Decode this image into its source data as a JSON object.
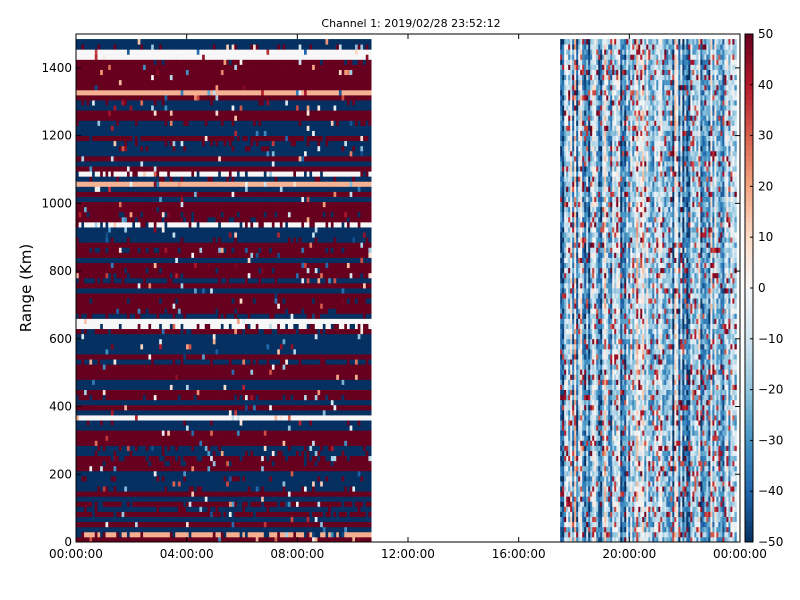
{
  "chart_data": {
    "type": "heatmap",
    "title": "Channel 1: 2019/02/28 23:52:12",
    "xlabel": "",
    "ylabel": "Range (Km)",
    "x_range": [
      "00:00:00",
      "24:00:00"
    ],
    "x_ticks": [
      "00:00:00",
      "04:00:00",
      "08:00:00",
      "12:00:00",
      "16:00:00",
      "20:00:00",
      "00:00:00"
    ],
    "y_range": [
      0,
      1500
    ],
    "y_ticks": [
      "0",
      "200",
      "400",
      "600",
      "800",
      "1000",
      "1200",
      "1400"
    ],
    "colorbar": {
      "range": [
        -50,
        50
      ],
      "ticks": [
        "50",
        "40",
        "30",
        "20",
        "10",
        "0",
        "−10",
        "−20",
        "−30",
        "−40",
        "−50"
      ],
      "colormap": "diverging red-blue (RdBu reversed)",
      "high_color": "#67001f",
      "mid_color": "#f7f7f7",
      "low_color": "#053061"
    },
    "data_segments": [
      {
        "start": "00:00:00",
        "end": "10:40:00",
        "pattern": "horizontal bands varying with range, values mostly saturated near ±50"
      },
      {
        "start": "17:30:00",
        "end": "23:52:12",
        "pattern": "vertical streaks varying with time, values mostly between −50 and 20"
      }
    ],
    "grid": false,
    "legend": "colorbar-right"
  }
}
